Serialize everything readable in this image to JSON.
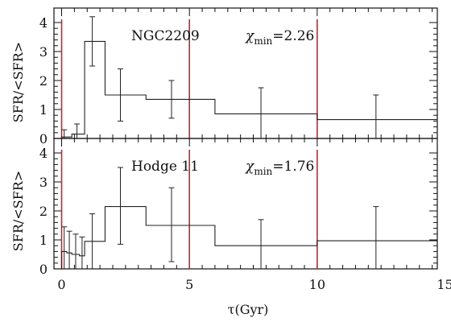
{
  "chart_data": [
    {
      "type": "line",
      "name": "NGC2209",
      "stat_label": "χmin=2.26",
      "stat_symbol": "χ",
      "stat_sub": "min",
      "stat_value": "=2.26",
      "ylabel": "SFR/<SFR>",
      "xlabel": "",
      "xlim": [
        -0.3,
        14.7
      ],
      "ylim": [
        0,
        4.5
      ],
      "yticks": [
        "0",
        "1",
        "2",
        "3",
        "4"
      ],
      "vlines": [
        0,
        5,
        10
      ],
      "steps": [
        {
          "x0": 0.0,
          "x1": 0.4,
          "y": 0.05
        },
        {
          "x0": 0.4,
          "x1": 0.9,
          "y": 0.15
        },
        {
          "x0": 0.9,
          "x1": 1.7,
          "y": 3.35
        },
        {
          "x0": 1.7,
          "x1": 3.3,
          "y": 1.5
        },
        {
          "x0": 3.3,
          "x1": 6.0,
          "y": 1.35
        },
        {
          "x0": 6.0,
          "x1": 10.0,
          "y": 0.85
        },
        {
          "x0": 10.0,
          "x1": 14.7,
          "y": 0.65
        }
      ],
      "errorbars": [
        {
          "x": 0.1,
          "lo": 0.0,
          "hi": 0.3
        },
        {
          "x": 0.6,
          "lo": 0.0,
          "hi": 0.5
        },
        {
          "x": 1.2,
          "lo": 2.5,
          "hi": 4.2
        },
        {
          "x": 2.3,
          "lo": 0.6,
          "hi": 2.4
        },
        {
          "x": 4.3,
          "lo": 0.7,
          "hi": 2.0
        },
        {
          "x": 7.8,
          "lo": 0.0,
          "hi": 1.75
        },
        {
          "x": 12.3,
          "lo": 0.0,
          "hi": 1.5
        }
      ]
    },
    {
      "type": "line",
      "name": "Hodge 11",
      "stat_label": "χmin=1.76",
      "stat_symbol": "χ",
      "stat_sub": "min",
      "stat_value": "=1.76",
      "ylabel": "SFR/<SFR>",
      "xlabel": "τ(Gyr)",
      "xlim": [
        -0.3,
        14.7
      ],
      "ylim": [
        0,
        4.5
      ],
      "xticks": [
        "0",
        "5",
        "10",
        "15"
      ],
      "yticks": [
        "0",
        "1",
        "2",
        "3",
        "4"
      ],
      "vlines": [
        0,
        5,
        10
      ],
      "steps": [
        {
          "x0": 0.0,
          "x1": 0.2,
          "y": 0.6
        },
        {
          "x0": 0.2,
          "x1": 0.4,
          "y": 0.55
        },
        {
          "x0": 0.4,
          "x1": 0.7,
          "y": 0.5
        },
        {
          "x0": 0.7,
          "x1": 0.9,
          "y": 0.45
        },
        {
          "x0": 0.9,
          "x1": 1.7,
          "y": 0.95
        },
        {
          "x0": 1.7,
          "x1": 3.3,
          "y": 2.15
        },
        {
          "x0": 3.3,
          "x1": 6.0,
          "y": 1.5
        },
        {
          "x0": 6.0,
          "x1": 10.0,
          "y": 0.8
        },
        {
          "x0": 10.0,
          "x1": 14.7,
          "y": 0.97
        }
      ],
      "errorbars": [
        {
          "x": 0.1,
          "lo": 0.0,
          "hi": 1.45
        },
        {
          "x": 0.3,
          "lo": 0.0,
          "hi": 1.3
        },
        {
          "x": 0.55,
          "lo": 0.0,
          "hi": 1.2
        },
        {
          "x": 0.8,
          "lo": 0.0,
          "hi": 1.1
        },
        {
          "x": 1.2,
          "lo": 0.0,
          "hi": 1.9
        },
        {
          "x": 2.3,
          "lo": 0.85,
          "hi": 3.5
        },
        {
          "x": 4.3,
          "lo": 0.25,
          "hi": 2.8
        },
        {
          "x": 7.8,
          "lo": 0.0,
          "hi": 1.7
        },
        {
          "x": 12.3,
          "lo": 0.0,
          "hi": 2.15
        }
      ]
    }
  ],
  "colors": {
    "axis": "#111111",
    "step": "#222222",
    "vline": "#c0282d"
  }
}
